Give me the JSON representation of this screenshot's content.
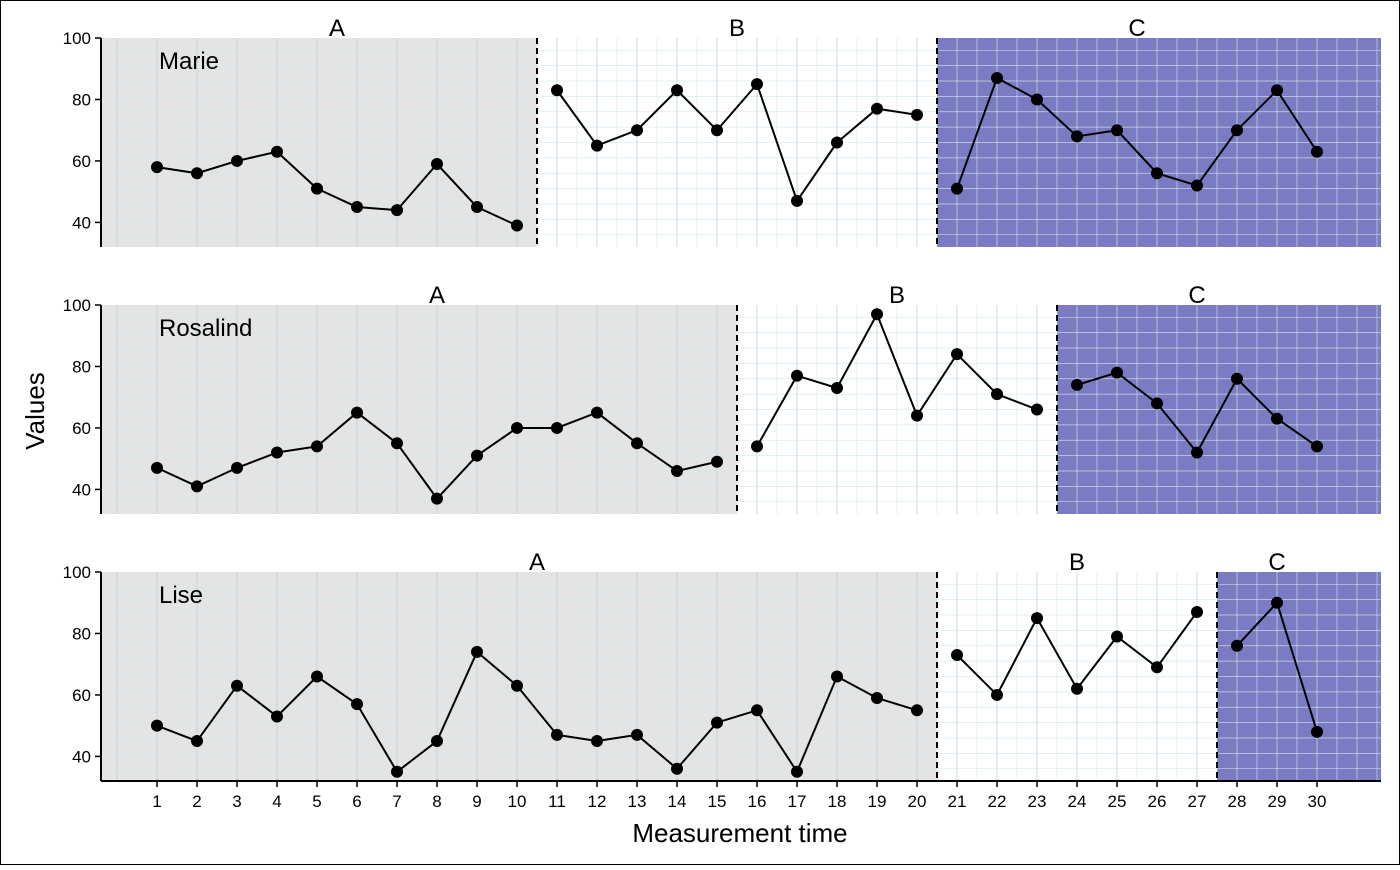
{
  "chart_data": {
    "type": "line",
    "xlabel": "Measurement time",
    "ylabel": "Values",
    "x": [
      1,
      2,
      3,
      4,
      5,
      6,
      7,
      8,
      9,
      10,
      11,
      12,
      13,
      14,
      15,
      16,
      17,
      18,
      19,
      20,
      21,
      22,
      23,
      24,
      25,
      26,
      27,
      28,
      29,
      30
    ],
    "xlim": [
      -0.4,
      31.6
    ],
    "yticks": [
      40,
      60,
      80,
      100
    ],
    "ylim": [
      32,
      100
    ],
    "grid": true,
    "phase_colors": {
      "A": "#e4e4e4",
      "B": "#ffffff",
      "C": "#7b7bc4"
    },
    "panels": [
      {
        "name": "Marie",
        "phases": [
          {
            "label": "A",
            "start": 1,
            "end": 10
          },
          {
            "label": "B",
            "start": 11,
            "end": 20
          },
          {
            "label": "C",
            "start": 21,
            "end": 30
          }
        ],
        "values": [
          58,
          56,
          60,
          63,
          51,
          45,
          44,
          59,
          45,
          39,
          83,
          65,
          70,
          83,
          70,
          85,
          47,
          66,
          77,
          75,
          51,
          87,
          80,
          68,
          70,
          56,
          52,
          70,
          83,
          63
        ]
      },
      {
        "name": "Rosalind",
        "phases": [
          {
            "label": "A",
            "start": 1,
            "end": 15
          },
          {
            "label": "B",
            "start": 16,
            "end": 23
          },
          {
            "label": "C",
            "start": 24,
            "end": 30
          }
        ],
        "values": [
          47,
          41,
          47,
          52,
          54,
          65,
          55,
          37,
          51,
          60,
          60,
          65,
          55,
          46,
          49,
          54,
          77,
          73,
          97,
          64,
          84,
          71,
          66,
          74,
          78,
          68,
          52,
          76,
          63,
          54
        ]
      },
      {
        "name": "Lise",
        "phases": [
          {
            "label": "A",
            "start": 1,
            "end": 20
          },
          {
            "label": "B",
            "start": 21,
            "end": 27
          },
          {
            "label": "C",
            "start": 28,
            "end": 30
          }
        ],
        "values": [
          50,
          45,
          63,
          53,
          66,
          57,
          35,
          45,
          74,
          63,
          47,
          45,
          47,
          36,
          51,
          55,
          35,
          66,
          59,
          55,
          73,
          60,
          85,
          62,
          79,
          69,
          87,
          76,
          90,
          48
        ]
      }
    ]
  }
}
